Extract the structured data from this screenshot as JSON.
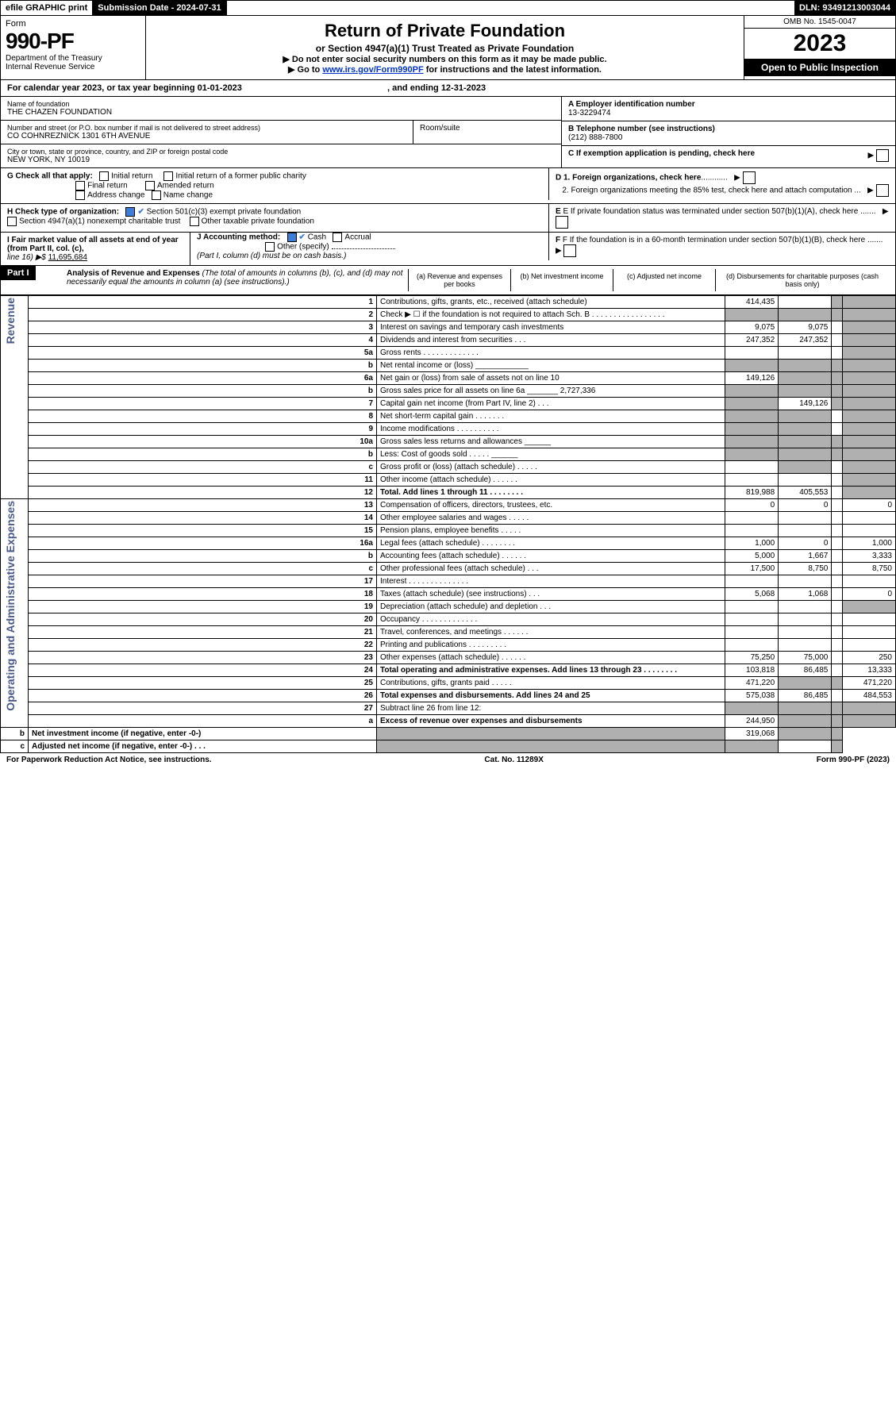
{
  "top_bar": {
    "efile": "efile GRAPHIC print",
    "submission_label": "Submission Date - 2024-07-31",
    "dln": "DLN: 93491213003044"
  },
  "header": {
    "form_word": "Form",
    "form_no": "990-PF",
    "dept": "Department of the Treasury",
    "irs": "Internal Revenue Service",
    "title": "Return of Private Foundation",
    "subtitle": "or Section 4947(a)(1) Trust Treated as Private Foundation",
    "note1": "▶ Do not enter social security numbers on this form as it may be made public.",
    "note2_pre": "▶ Go to ",
    "note2_link": "www.irs.gov/Form990PF",
    "note2_post": " for instructions and the latest information.",
    "omb": "OMB No. 1545-0047",
    "year": "2023",
    "inspect": "Open to Public Inspection"
  },
  "cal": {
    "text": "For calendar year 2023, or tax year beginning 01-01-2023",
    "end": ", and ending 12-31-2023"
  },
  "id": {
    "name_label": "Name of foundation",
    "name": "THE CHAZEN FOUNDATION",
    "addr_label": "Number and street (or P.O. box number if mail is not delivered to street address)",
    "addr": "CO COHNREZNICK 1301 6TH AVENUE",
    "room_label": "Room/suite",
    "city_label": "City or town, state or province, country, and ZIP or foreign postal code",
    "city": "NEW YORK, NY  10019",
    "ein_label": "A Employer identification number",
    "ein": "13-3229474",
    "tel_label": "B Telephone number (see instructions)",
    "tel": "(212) 888-7800",
    "c_label": "C If exemption application is pending, check here"
  },
  "g": {
    "label": "G Check all that apply:",
    "initial": "Initial return",
    "initial_pub": "Initial return of a former public charity",
    "final": "Final return",
    "amended": "Amended return",
    "addr_change": "Address change",
    "name_change": "Name change"
  },
  "d": {
    "d1": "D 1. Foreign organizations, check here",
    "d2": "2. Foreign organizations meeting the 85% test, check here and attach computation ..."
  },
  "h": {
    "label": "H Check type of organization:",
    "s501": "Section 501(c)(3) exempt private foundation",
    "s4947": "Section 4947(a)(1) nonexempt charitable trust",
    "other_tax": "Other taxable private foundation"
  },
  "e": {
    "text": "E  If private foundation status was terminated under section 507(b)(1)(A), check here ......."
  },
  "i": {
    "label": "I Fair market value of all assets at end of year (from Part II, col. (c),",
    "line16": "line 16) ▶$ ",
    "value": "11,695,684"
  },
  "j": {
    "label": "J Accounting method:",
    "cash": "Cash",
    "accrual": "Accrual",
    "other": "Other (specify)",
    "note": "(Part I, column (d) must be on cash basis.)"
  },
  "f": {
    "text": "F  If the foundation is in a 60-month termination under section 507(b)(1)(B), check here ......."
  },
  "part1": {
    "label": "Part I",
    "title": "Analysis of Revenue and Expenses",
    "title_note": " (The total of amounts in columns (b), (c), and (d) may not necessarily equal the amounts in column (a) (see instructions).)",
    "col_a": "(a) Revenue and expenses per books",
    "col_b": "(b) Net investment income",
    "col_c": "(c) Adjusted net income",
    "col_d": "(d) Disbursements for charitable purposes (cash basis only)"
  },
  "sections": {
    "revenue": "Revenue",
    "expenses": "Operating and Administrative Expenses"
  },
  "rows": [
    {
      "n": "1",
      "d": "Contributions, gifts, grants, etc., received (attach schedule)",
      "a": "414,435",
      "b": "",
      "c": "grey",
      "dd": "grey"
    },
    {
      "n": "2",
      "d": "Check ▶ ☐ if the foundation is not required to attach Sch. B  . . . . . . . . . . . . . . . . .",
      "a": "grey",
      "b": "grey",
      "c": "grey",
      "dd": "grey"
    },
    {
      "n": "3",
      "d": "Interest on savings and temporary cash investments",
      "a": "9,075",
      "b": "9,075",
      "c": "",
      "dd": "grey"
    },
    {
      "n": "4",
      "d": "Dividends and interest from securities  . . .",
      "a": "247,352",
      "b": "247,352",
      "c": "",
      "dd": "grey"
    },
    {
      "n": "5a",
      "d": "Gross rents  . . . . . . . . . . . . .",
      "a": "",
      "b": "",
      "c": "",
      "dd": "grey"
    },
    {
      "n": "b",
      "d": "Net rental income or (loss)  ____________",
      "a": "grey",
      "b": "grey",
      "c": "grey",
      "dd": "grey"
    },
    {
      "n": "6a",
      "d": "Net gain or (loss) from sale of assets not on line 10",
      "a": "149,126",
      "b": "grey",
      "c": "grey",
      "dd": "grey"
    },
    {
      "n": "b",
      "d": "Gross sales price for all assets on line 6a _______ 2,727,336",
      "a": "grey",
      "b": "grey",
      "c": "grey",
      "dd": "grey"
    },
    {
      "n": "7",
      "d": "Capital gain net income (from Part IV, line 2)  . . .",
      "a": "grey",
      "b": "149,126",
      "c": "grey",
      "dd": "grey"
    },
    {
      "n": "8",
      "d": "Net short-term capital gain  . . . . . . .",
      "a": "grey",
      "b": "grey",
      "c": "",
      "dd": "grey"
    },
    {
      "n": "9",
      "d": "Income modifications . . . . . . . . . .",
      "a": "grey",
      "b": "grey",
      "c": "",
      "dd": "grey"
    },
    {
      "n": "10a",
      "d": "Gross sales less returns and allowances  ______",
      "a": "grey",
      "b": "grey",
      "c": "grey",
      "dd": "grey"
    },
    {
      "n": "b",
      "d": "Less: Cost of goods sold  . . . . .  ______",
      "a": "grey",
      "b": "grey",
      "c": "grey",
      "dd": "grey"
    },
    {
      "n": "c",
      "d": "Gross profit or (loss) (attach schedule)  . . . . .",
      "a": "",
      "b": "grey",
      "c": "",
      "dd": "grey"
    },
    {
      "n": "11",
      "d": "Other income (attach schedule)  . . . . . .",
      "a": "",
      "b": "",
      "c": "",
      "dd": "grey"
    },
    {
      "n": "12",
      "d": "Total. Add lines 1 through 11  . . . . . . . .",
      "a": "819,988",
      "b": "405,553",
      "c": "",
      "dd": "grey",
      "bold": true
    },
    {
      "n": "13",
      "d": "Compensation of officers, directors, trustees, etc.",
      "a": "0",
      "b": "0",
      "c": "",
      "dd": "0"
    },
    {
      "n": "14",
      "d": "Other employee salaries and wages  . . . . .",
      "a": "",
      "b": "",
      "c": "",
      "dd": ""
    },
    {
      "n": "15",
      "d": "Pension plans, employee benefits  . . . . .",
      "a": "",
      "b": "",
      "c": "",
      "dd": ""
    },
    {
      "n": "16a",
      "d": "Legal fees (attach schedule) . . . . . . . .",
      "a": "1,000",
      "b": "0",
      "c": "",
      "dd": "1,000"
    },
    {
      "n": "b",
      "d": "Accounting fees (attach schedule) . . . . . .",
      "a": "5,000",
      "b": "1,667",
      "c": "",
      "dd": "3,333"
    },
    {
      "n": "c",
      "d": "Other professional fees (attach schedule)  . . .",
      "a": "17,500",
      "b": "8,750",
      "c": "",
      "dd": "8,750"
    },
    {
      "n": "17",
      "d": "Interest . . . . . . . . . . . . . .",
      "a": "",
      "b": "",
      "c": "",
      "dd": ""
    },
    {
      "n": "18",
      "d": "Taxes (attach schedule) (see instructions)  . . .",
      "a": "5,068",
      "b": "1,068",
      "c": "",
      "dd": "0"
    },
    {
      "n": "19",
      "d": "Depreciation (attach schedule) and depletion  . . .",
      "a": "",
      "b": "",
      "c": "",
      "dd": "grey"
    },
    {
      "n": "20",
      "d": "Occupancy . . . . . . . . . . . . .",
      "a": "",
      "b": "",
      "c": "",
      "dd": ""
    },
    {
      "n": "21",
      "d": "Travel, conferences, and meetings . . . . . .",
      "a": "",
      "b": "",
      "c": "",
      "dd": ""
    },
    {
      "n": "22",
      "d": "Printing and publications . . . . . . . . .",
      "a": "",
      "b": "",
      "c": "",
      "dd": ""
    },
    {
      "n": "23",
      "d": "Other expenses (attach schedule) . . . . . .",
      "a": "75,250",
      "b": "75,000",
      "c": "",
      "dd": "250"
    },
    {
      "n": "24",
      "d": "Total operating and administrative expenses. Add lines 13 through 23  . . . . . . . .",
      "a": "103,818",
      "b": "86,485",
      "c": "",
      "dd": "13,333",
      "bold": true
    },
    {
      "n": "25",
      "d": "Contributions, gifts, grants paid  . . . . .",
      "a": "471,220",
      "b": "grey",
      "c": "grey",
      "dd": "471,220"
    },
    {
      "n": "26",
      "d": "Total expenses and disbursements. Add lines 24 and 25",
      "a": "575,038",
      "b": "86,485",
      "c": "",
      "dd": "484,553",
      "bold": true
    },
    {
      "n": "27",
      "d": "Subtract line 26 from line 12:",
      "a": "grey",
      "b": "grey",
      "c": "grey",
      "dd": "grey"
    },
    {
      "n": "a",
      "d": "Excess of revenue over expenses and disbursements",
      "a": "244,950",
      "b": "grey",
      "c": "grey",
      "dd": "grey",
      "bold": true
    },
    {
      "n": "b",
      "d": "Net investment income (if negative, enter -0-)",
      "a": "grey",
      "b": "319,068",
      "c": "grey",
      "dd": "grey",
      "bold": true
    },
    {
      "n": "c",
      "d": "Adjusted net income (if negative, enter -0-)  . . .",
      "a": "grey",
      "b": "grey",
      "c": "",
      "dd": "grey",
      "bold": true
    }
  ],
  "footer": {
    "left": "For Paperwork Reduction Act Notice, see instructions.",
    "mid": "Cat. No. 11289X",
    "right": "Form 990-PF (2023)"
  }
}
